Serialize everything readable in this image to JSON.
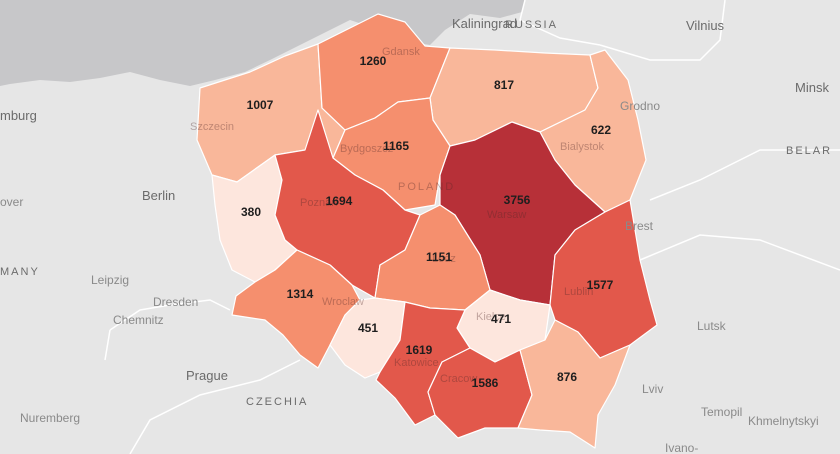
{
  "colors": {
    "background": "#e6e6e6",
    "sea": "#c7c7c9",
    "border": "#ffffff",
    "scale": [
      "#fde6dd",
      "#f9b79a",
      "#f58f6e",
      "#e2584b",
      "#b73038"
    ]
  },
  "places": {
    "kaliningrad": "Kaliningrad",
    "russia": "RUSSIA",
    "vilnius": "Vilnius",
    "minsk": "Minsk",
    "belarus": "BELAR",
    "hamburg": "mburg",
    "hannover": "over",
    "berlin": "Berlin",
    "germany": "MANY",
    "leipzig": "Leipzig",
    "dresden": "Dresden",
    "chemnitz": "Chemnitz",
    "prague": "Prague",
    "czechia": "CZECHIA",
    "nuremberg": "Nuremberg",
    "brest": "Brest",
    "grodno": "Grodno",
    "lutsk": "Lutsk",
    "lviv": "Lviv",
    "ternopil": "Temopil",
    "khmelnytskyi": "Khmelnytskyi",
    "ivano": "Ivano-",
    "poland": "POLAND",
    "gdansk": "Gdansk",
    "szczecin": "Szczecin",
    "bydgoszcz": "Bydgoszcz",
    "bialystok": "Bialystok",
    "poznan": "Poznan",
    "warsaw": "Warsaw",
    "wroclaw": "Wroclaw",
    "lodz": "Lodz",
    "lublin": "Lublin",
    "kielce": "Kielce",
    "katowice": "Katowice",
    "krakow": "Cracow"
  },
  "regions": {
    "zachodniopomorskie": {
      "value": "1007",
      "level": 1
    },
    "pomorskie": {
      "value": "1260",
      "level": 2
    },
    "warminsko_mazurskie": {
      "value": "817",
      "level": 1
    },
    "podlaskie": {
      "value": "622",
      "level": 1
    },
    "kujawsko_pomorskie": {
      "value": "1165",
      "level": 2
    },
    "lubuskie": {
      "value": "380",
      "level": 0
    },
    "wielkopolskie": {
      "value": "1694",
      "level": 3
    },
    "mazowieckie": {
      "value": "3756",
      "level": 4
    },
    "lodzkie": {
      "value": "1151",
      "level": 2
    },
    "lubelskie": {
      "value": "1577",
      "level": 3
    },
    "dolnoslaskie": {
      "value": "1314",
      "level": 2
    },
    "opolskie": {
      "value": "451",
      "level": 0
    },
    "swietokrzyskie": {
      "value": "471",
      "level": 0
    },
    "slaskie": {
      "value": "1619",
      "level": 3
    },
    "malopolskie": {
      "value": "1586",
      "level": 3
    },
    "podkarpackie": {
      "value": "876",
      "level": 1
    }
  }
}
